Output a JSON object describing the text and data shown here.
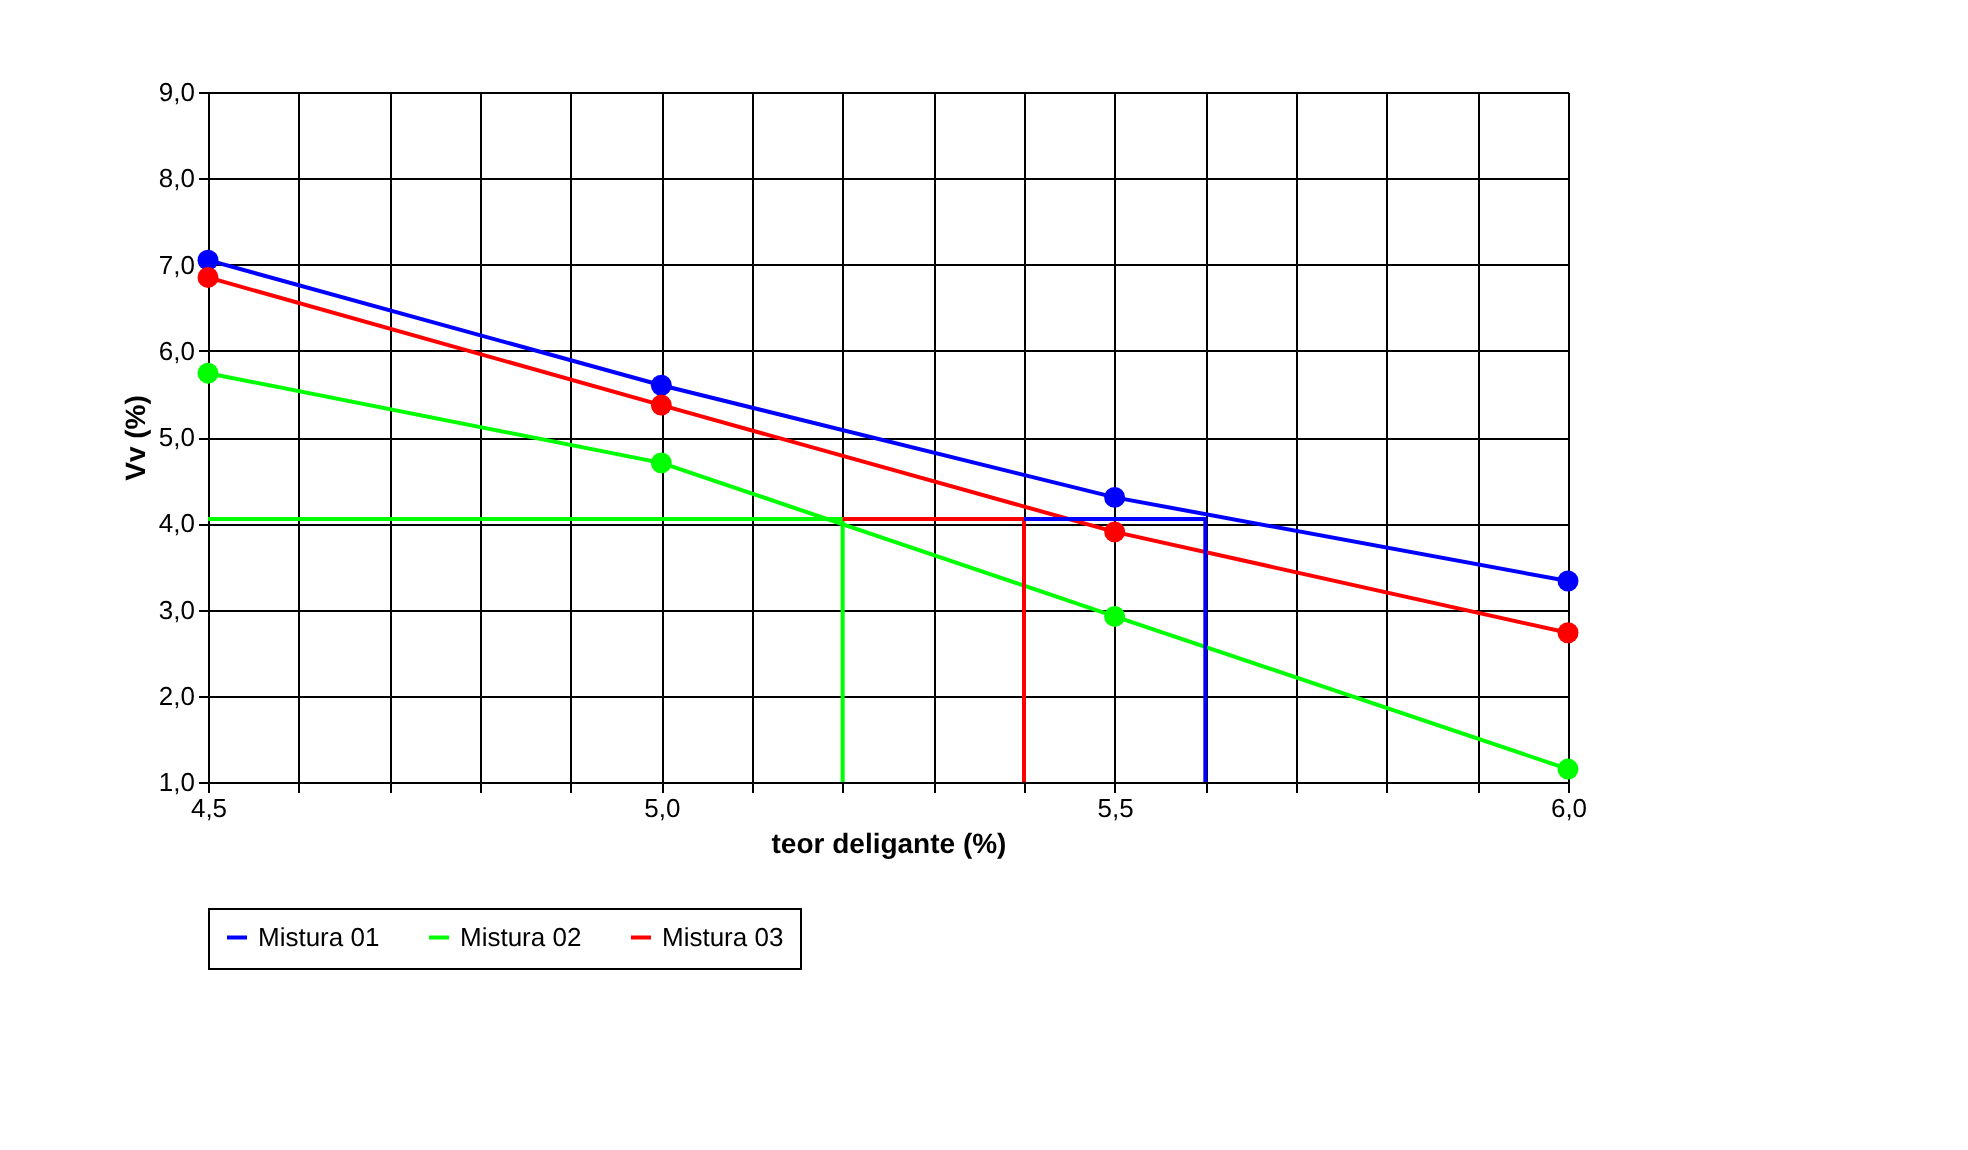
{
  "chart_data": {
    "type": "line",
    "xlabel": "teor deligante (%)",
    "ylabel": "Vv (%)",
    "xlim": [
      4.5,
      6.0
    ],
    "ylim": [
      1.0,
      9.0
    ],
    "xticks": [
      {
        "value": 4.5,
        "label": "4,5"
      },
      {
        "value": 4.6,
        "label": null
      },
      {
        "value": 4.7,
        "label": null
      },
      {
        "value": 4.8,
        "label": null
      },
      {
        "value": 4.9,
        "label": null
      },
      {
        "value": 5.0,
        "label": "5,0"
      },
      {
        "value": 5.1,
        "label": null
      },
      {
        "value": 5.2,
        "label": null
      },
      {
        "value": 5.3,
        "label": null
      },
      {
        "value": 5.4,
        "label": null
      },
      {
        "value": 5.5,
        "label": "5,5"
      },
      {
        "value": 5.6,
        "label": null
      },
      {
        "value": 5.7,
        "label": null
      },
      {
        "value": 5.8,
        "label": null
      },
      {
        "value": 5.9,
        "label": null
      },
      {
        "value": 6.0,
        "label": "6,0"
      }
    ],
    "yticks": [
      {
        "value": 1,
        "label": "1,0"
      },
      {
        "value": 2,
        "label": "2,0"
      },
      {
        "value": 3,
        "label": "3,0"
      },
      {
        "value": 4,
        "label": "4,0"
      },
      {
        "value": 5,
        "label": "5,0"
      },
      {
        "value": 6,
        "label": "6,0"
      },
      {
        "value": 7,
        "label": "7,0"
      },
      {
        "value": 8,
        "label": "8,0"
      },
      {
        "value": 9,
        "label": "9,0"
      }
    ],
    "x": [
      4.5,
      5.0,
      5.5,
      6.0
    ],
    "grid": true,
    "legend": "bottom",
    "marker": "circle",
    "line_style": "solid",
    "series": [
      {
        "name": "Mistura 01",
        "color": "#0000ff",
        "values": [
          7.05,
          5.6,
          4.3,
          3.33
        ]
      },
      {
        "name": "Mistura 02",
        "color": "#00ff00",
        "values": [
          5.74,
          4.7,
          2.92,
          1.15
        ]
      },
      {
        "name": "Mistura 03",
        "color": "#ff0000",
        "values": [
          6.85,
          5.37,
          3.9,
          2.73
        ]
      },
      {
        "color": "#00ff00",
        "marker": "none",
        "x": [
          4.5,
          5.2,
          5.2
        ],
        "values": [
          4.05,
          4.05,
          1.0
        ]
      },
      {
        "color": "#ff0000",
        "marker": "none",
        "x": [
          5.2,
          5.4,
          5.4
        ],
        "values": [
          4.05,
          4.05,
          1.0
        ]
      },
      {
        "color": "#0000ff",
        "marker": "none",
        "x": [
          5.4,
          5.6,
          5.6
        ],
        "values": [
          4.05,
          4.05,
          1.0
        ]
      }
    ]
  }
}
